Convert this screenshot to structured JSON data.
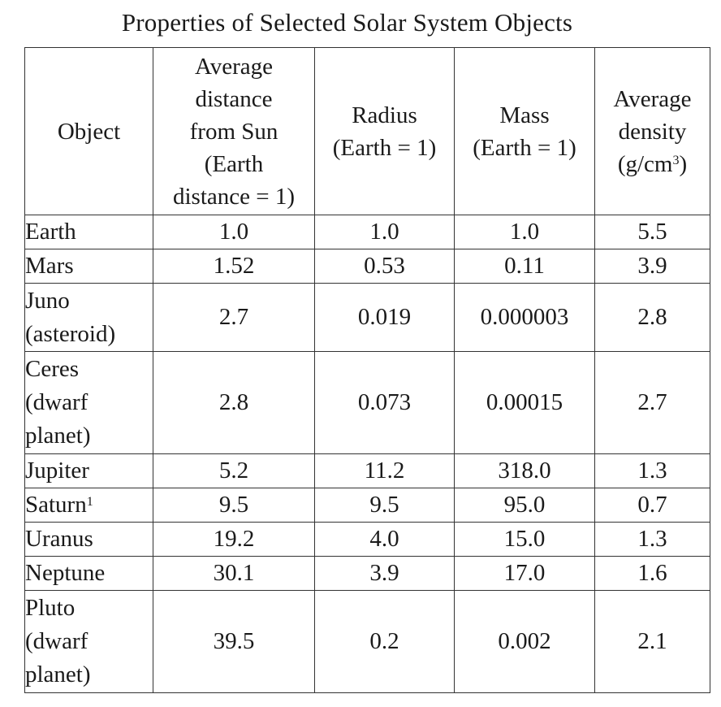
{
  "title": "Properties of Selected Solar System Objects",
  "headers": {
    "object": "Object",
    "distance": [
      "Average",
      "distance",
      "from Sun",
      "(Earth",
      "distance = 1)"
    ],
    "radius": [
      "Radius",
      "(Earth = 1)"
    ],
    "mass": [
      "Mass",
      "(Earth = 1)"
    ],
    "density": [
      "Average",
      "density",
      "(g/cm",
      "3",
      ")"
    ]
  },
  "rows": [
    {
      "name": [
        "Earth"
      ],
      "sup": "",
      "distance": "1.0",
      "radius": "1.0",
      "mass": "1.0",
      "density": "5.5"
    },
    {
      "name": [
        "Mars"
      ],
      "sup": "",
      "distance": "1.52",
      "radius": "0.53",
      "mass": "0.11",
      "density": "3.9"
    },
    {
      "name": [
        "Juno",
        "(asteroid)"
      ],
      "sup": "",
      "distance": "2.7",
      "radius": "0.019",
      "mass": "0.000003",
      "density": "2.8"
    },
    {
      "name": [
        "Ceres",
        "(dwarf",
        "planet)"
      ],
      "sup": "",
      "distance": "2.8",
      "radius": "0.073",
      "mass": "0.00015",
      "density": "2.7"
    },
    {
      "name": [
        "Jupiter"
      ],
      "sup": "",
      "distance": "5.2",
      "radius": "11.2",
      "mass": "318.0",
      "density": "1.3"
    },
    {
      "name": [
        "Saturn"
      ],
      "sup": "1",
      "distance": "9.5",
      "radius": "9.5",
      "mass": "95.0",
      "density": "0.7"
    },
    {
      "name": [
        "Uranus"
      ],
      "sup": "",
      "distance": "19.2",
      "radius": "4.0",
      "mass": "15.0",
      "density": "1.3"
    },
    {
      "name": [
        "Neptune"
      ],
      "sup": "",
      "distance": "30.1",
      "radius": "3.9",
      "mass": "17.0",
      "density": "1.6"
    },
    {
      "name": [
        "Pluto",
        "(dwarf",
        "planet)"
      ],
      "sup": "",
      "distance": "39.5",
      "radius": "0.2",
      "mass": "0.002",
      "density": "2.1"
    }
  ]
}
